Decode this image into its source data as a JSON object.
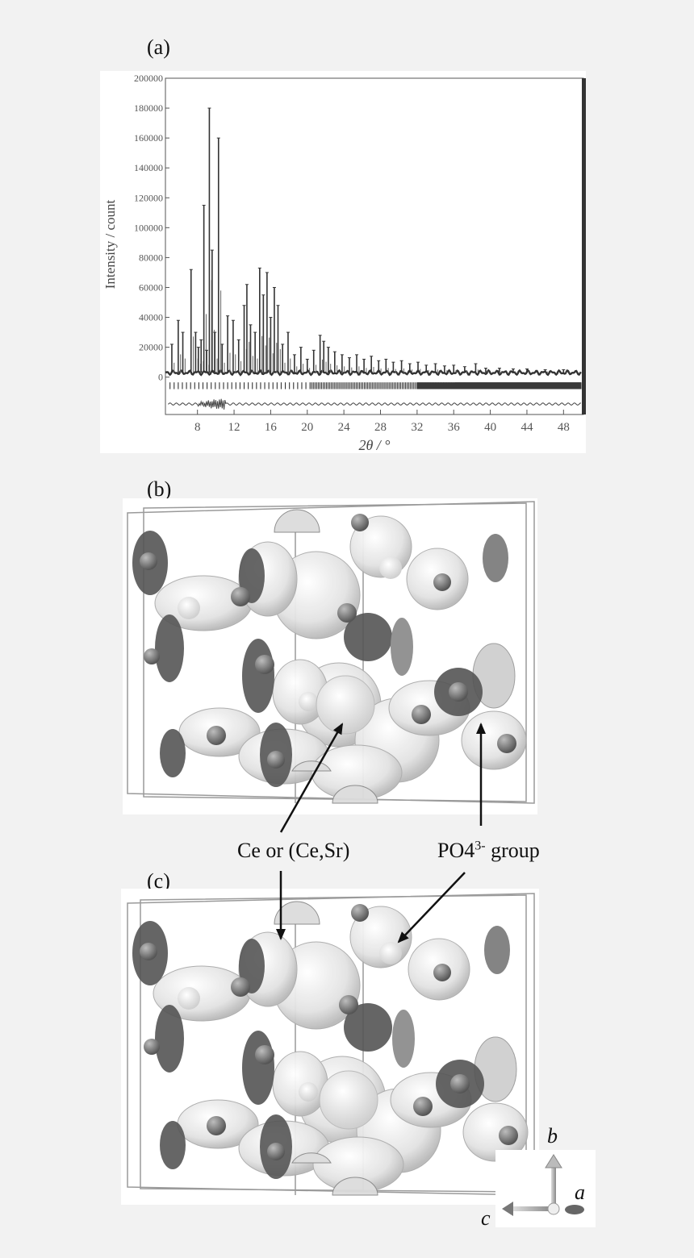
{
  "panels": {
    "a": "(a)",
    "b": "(b)",
    "c": "(c)"
  },
  "chart_data": {
    "type": "line",
    "xlabel": "2θ / °",
    "ylabel": "Intensity / count",
    "xlim": [
      4.5,
      50
    ],
    "ylim": [
      -25000,
      200000
    ],
    "x_ticks": [
      8,
      12,
      16,
      20,
      24,
      28,
      32,
      36,
      40,
      44,
      48
    ],
    "y_ticks": [
      0,
      20000,
      40000,
      60000,
      80000,
      100000,
      120000,
      140000,
      160000,
      180000,
      200000
    ],
    "grid": false,
    "baseline": 3000,
    "peaks": [
      {
        "x": 5.2,
        "y": 22000
      },
      {
        "x": 5.9,
        "y": 38000
      },
      {
        "x": 6.4,
        "y": 30000
      },
      {
        "x": 7.3,
        "y": 72000
      },
      {
        "x": 7.8,
        "y": 30000
      },
      {
        "x": 8.1,
        "y": 20000
      },
      {
        "x": 8.4,
        "y": 25000
      },
      {
        "x": 8.7,
        "y": 115000
      },
      {
        "x": 9.0,
        "y": 18000
      },
      {
        "x": 9.3,
        "y": 180000
      },
      {
        "x": 9.6,
        "y": 85000
      },
      {
        "x": 9.9,
        "y": 30000
      },
      {
        "x": 10.3,
        "y": 160000
      },
      {
        "x": 10.7,
        "y": 22000
      },
      {
        "x": 11.3,
        "y": 41000
      },
      {
        "x": 11.9,
        "y": 38000
      },
      {
        "x": 12.5,
        "y": 25000
      },
      {
        "x": 13.1,
        "y": 48000
      },
      {
        "x": 13.4,
        "y": 62000
      },
      {
        "x": 13.8,
        "y": 35000
      },
      {
        "x": 14.3,
        "y": 30000
      },
      {
        "x": 14.8,
        "y": 73000
      },
      {
        "x": 15.2,
        "y": 55000
      },
      {
        "x": 15.6,
        "y": 70000
      },
      {
        "x": 16.0,
        "y": 40000
      },
      {
        "x": 16.4,
        "y": 60000
      },
      {
        "x": 16.8,
        "y": 48000
      },
      {
        "x": 17.3,
        "y": 22000
      },
      {
        "x": 17.9,
        "y": 30000
      },
      {
        "x": 18.6,
        "y": 15000
      },
      {
        "x": 19.3,
        "y": 20000
      },
      {
        "x": 20.0,
        "y": 12000
      },
      {
        "x": 20.7,
        "y": 18000
      },
      {
        "x": 21.4,
        "y": 28000
      },
      {
        "x": 21.8,
        "y": 24000
      },
      {
        "x": 22.3,
        "y": 20000
      },
      {
        "x": 23.0,
        "y": 17000
      },
      {
        "x": 23.8,
        "y": 15000
      },
      {
        "x": 24.6,
        "y": 13000
      },
      {
        "x": 25.4,
        "y": 15000
      },
      {
        "x": 26.2,
        "y": 12000
      },
      {
        "x": 27.0,
        "y": 14000
      },
      {
        "x": 27.8,
        "y": 11000
      },
      {
        "x": 28.6,
        "y": 12000
      },
      {
        "x": 29.4,
        "y": 10000
      },
      {
        "x": 30.3,
        "y": 11000
      },
      {
        "x": 31.2,
        "y": 9000
      },
      {
        "x": 32.1,
        "y": 10000
      },
      {
        "x": 33.0,
        "y": 8000
      },
      {
        "x": 34.0,
        "y": 9000
      },
      {
        "x": 35.0,
        "y": 7500
      },
      {
        "x": 36.0,
        "y": 8000
      },
      {
        "x": 37.2,
        "y": 7000
      },
      {
        "x": 38.4,
        "y": 9000
      },
      {
        "x": 39.5,
        "y": 6000
      },
      {
        "x": 41.0,
        "y": 6000
      },
      {
        "x": 42.5,
        "y": 5500
      },
      {
        "x": 44.0,
        "y": 5500
      },
      {
        "x": 46.0,
        "y": 5000
      },
      {
        "x": 48.0,
        "y": 5000
      }
    ]
  },
  "annotations": {
    "ce": "Ce or (Ce,Sr)",
    "po4_main": "PO",
    "po4_sub": "4",
    "po4_sup": "3-",
    "po4_tail": " group"
  },
  "axes": {
    "b": "b",
    "a": "a",
    "c": "c"
  }
}
